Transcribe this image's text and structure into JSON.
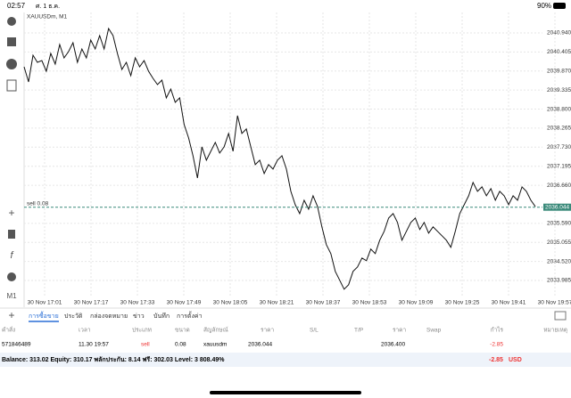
{
  "status": {
    "time": "02:57",
    "date": "ศ. 1 ธ.ค.",
    "battery": "90%"
  },
  "chart": {
    "type": "line",
    "symbol": "XAUUSDm, M1",
    "sell_label": "sell 0.08",
    "sell_price": 2036.044,
    "yticks": [
      {
        "value": 2040.94,
        "label": "2040.940"
      },
      2040.405,
      {
        "value": 2039.87,
        "label": "2039.870"
      },
      2039.335,
      {
        "value": 2038.8,
        "label": "2038.800"
      },
      2038.265,
      {
        "value": 2037.73,
        "label": "2037.730"
      },
      2037.195,
      {
        "value": 2036.66,
        "label": "2036.660"
      },
      {
        "value": 2035.59,
        "label": "2035.590"
      },
      2035.055,
      {
        "value": 2034.52,
        "label": "2034.520"
      },
      2033.985
    ],
    "x": [
      "30 Nov 17:01",
      "30 Nov 17:17",
      "30 Nov 17:33",
      "30 Nov 17:49",
      "30 Nov 18:05",
      "30 Nov 18:21",
      "30 Nov 18:37",
      "30 Nov 18:53",
      "30 Nov 19:09",
      "30 Nov 19:25",
      "30 Nov 19:41",
      "30 Nov 19:57"
    ],
    "prices": [
      2039.99,
      2039.565,
      2040.315,
      2040.115,
      2040.165,
      2039.865,
      2040.365,
      2040.065,
      2040.615,
      2040.24,
      2040.415,
      2040.665,
      2040.115,
      2040.49,
      2040.24,
      2040.74,
      2040.49,
      2040.865,
      2040.49,
      2041.065,
      2040.865,
      2040.365,
      2039.915,
      2040.115,
      2039.74,
      2040.24,
      2039.99,
      2040.165,
      2039.865,
      2039.665,
      2039.49,
      2039.615,
      2039.115,
      2039.365,
      2038.99,
      2039.115,
      2038.365,
      2037.99,
      2037.49,
      2036.865,
      2037.74,
      2037.365,
      2037.615,
      2037.865,
      2037.565,
      2037.74,
      2038.115,
      2037.615,
      2038.615,
      2038.115,
      2038.24,
      2037.74,
      2037.24,
      2037.365,
      2036.99,
      2037.24,
      2037.115,
      2037.365,
      2037.49,
      2037.115,
      2036.49,
      2036.115,
      2035.865,
      2036.24,
      2035.99,
      2036.365,
      2036.065,
      2035.49,
      2034.99,
      2034.74,
      2034.24,
      2033.99,
      2033.74,
      2033.865,
      2034.24,
      2034.365,
      2034.615,
      2034.54,
      2034.865,
      2034.74,
      2035.115,
      2035.365,
      2035.74,
      2035.865,
      2035.615,
      2035.115,
      2035.365,
      2035.615,
      2035.74,
      2035.415,
      2035.615,
      2035.315,
      2035.49,
      2035.365,
      2035.24,
      2035.115,
      2034.915,
      2035.365,
      2035.865,
      2036.115,
      2036.365,
      2036.74,
      2036.49,
      2036.615,
      2036.365,
      2036.565,
      2036.24,
      2036.49,
      2036.365,
      2036.115,
      2036.365,
      2036.24,
      2036.615,
      2036.49,
      2036.24,
      2036.065
    ]
  },
  "tabs": [
    "การซื้อขาย",
    "ประวัติ",
    "กล่องจดหมาย",
    "ข่าว",
    "บันทึก",
    "การตั้งค่า"
  ],
  "table": {
    "headers": [
      "คำสั่ง",
      "เวลา",
      "ประเภท",
      "ขนาด",
      "สัญลักษณ์",
      "ราคา",
      "S/L",
      "T/P",
      "ราคา",
      "Swap",
      "กำไร",
      "หมายเหตุ"
    ],
    "rows": [
      [
        "571846489",
        "11.30 19:57",
        "sell",
        "0.08",
        "xauusdm",
        "2036.044",
        "",
        "",
        "2036.400",
        "",
        "-2.85",
        ""
      ]
    ]
  },
  "balance": {
    "text": "Balance: 313.02 Equity: 310.17 พลักประกัน: 8.14 ฟรี: 302.03 Level: 3 808.49%",
    "profit": "-2.85",
    "currency": "USD"
  }
}
